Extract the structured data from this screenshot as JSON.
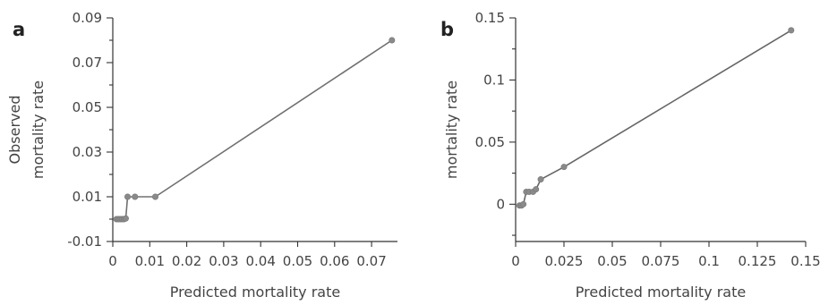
{
  "chart_data": [
    {
      "panel_label": "a",
      "type": "line",
      "xlabel": "Predicted mortality rate",
      "ylabel_lines": [
        "Observed",
        "mortality rate"
      ],
      "xlim": [
        0,
        0.077
      ],
      "ylim": [
        -0.01,
        0.09
      ],
      "xticks": [
        0,
        0.01,
        0.02,
        0.03,
        0.04,
        0.05,
        0.06,
        0.07
      ],
      "xtick_labels": [
        "0",
        "0.01",
        "0.02",
        "0.03",
        "0.04",
        "0.05",
        "0.06",
        "0.07"
      ],
      "yticks": [
        -0.01,
        0.01,
        0.03,
        0.05,
        0.07,
        0.09
      ],
      "ytick_labels": [
        "-0.01",
        "0.01",
        "0.03",
        "0.05",
        "0.07",
        "0.09"
      ],
      "yminor": [
        0,
        0.02,
        0.04,
        0.06,
        0.08
      ],
      "series": [
        {
          "x": [
            0.001,
            0.0015,
            0.002,
            0.0025,
            0.003,
            0.0035,
            0.004,
            0.006,
            0.0115,
            0.0755
          ],
          "y": [
            0,
            0,
            0,
            0,
            0,
            0.0003,
            0.01,
            0.01,
            0.01,
            0.08
          ]
        }
      ]
    },
    {
      "panel_label": "b",
      "type": "line",
      "xlabel": "Predicted mortality rate",
      "ylabel_lines": [
        "mortality rate"
      ],
      "xlim": [
        0,
        0.15
      ],
      "ylim": [
        -0.03,
        0.15
      ],
      "xticks": [
        0,
        0.025,
        0.05,
        0.075,
        0.1,
        0.125,
        0.15
      ],
      "xtick_labels": [
        "0",
        "0.025",
        "0.05",
        "0.075",
        "0.1",
        "0.125",
        "0.15"
      ],
      "yticks": [
        0,
        0.05,
        0.1,
        0.15
      ],
      "ytick_labels": [
        "0",
        "0.05",
        "0.1",
        "0.15"
      ],
      "yminor": [
        -0.025,
        0.025,
        0.075,
        0.125
      ],
      "series": [
        {
          "x": [
            0.002,
            0.003,
            0.004,
            0.0055,
            0.007,
            0.009,
            0.0105,
            0.013,
            0.025,
            0.1425
          ],
          "y": [
            -0.001,
            -0.001,
            0,
            0.01,
            0.01,
            0.01,
            0.012,
            0.02,
            0.03,
            0.14
          ]
        }
      ]
    }
  ]
}
